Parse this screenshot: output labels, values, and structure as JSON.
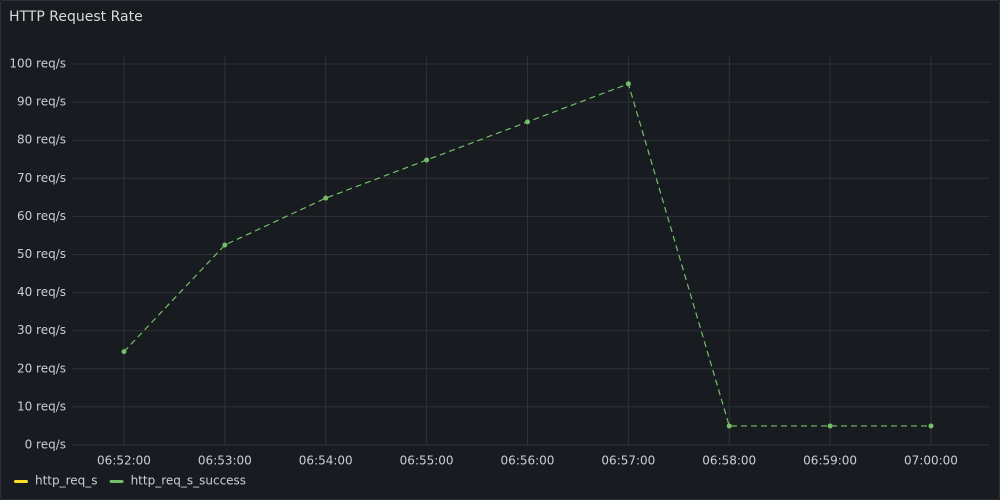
{
  "panel": {
    "title": "HTTP Request Rate"
  },
  "chart_data": {
    "type": "line",
    "categories": [
      "06:52:00",
      "06:53:00",
      "06:54:00",
      "06:55:00",
      "06:56:00",
      "06:57:00",
      "06:58:00",
      "06:59:00",
      "07:00:00"
    ],
    "series": [
      {
        "name": "http_req_s",
        "color": "#fade2a",
        "values": [
          null,
          null,
          null,
          null,
          null,
          null,
          null,
          null,
          null
        ]
      },
      {
        "name": "http_req_s_success",
        "color": "#73bf69",
        "values": [
          24.5,
          52.5,
          64.8,
          74.8,
          84.8,
          94.8,
          5,
          5,
          5
        ]
      }
    ],
    "ylim": [
      0,
      100
    ],
    "yticks": [
      {
        "value": 0,
        "label": "0 req/s"
      },
      {
        "value": 10,
        "label": "10 req/s"
      },
      {
        "value": 20,
        "label": "20 req/s"
      },
      {
        "value": 30,
        "label": "30 req/s"
      },
      {
        "value": 40,
        "label": "40 req/s"
      },
      {
        "value": 50,
        "label": "50 req/s"
      },
      {
        "value": 60,
        "label": "60 req/s"
      },
      {
        "value": 70,
        "label": "70 req/s"
      },
      {
        "value": 80,
        "label": "80 req/s"
      },
      {
        "value": 90,
        "label": "90 req/s"
      },
      {
        "value": 100,
        "label": "100 req/s"
      }
    ],
    "grid": true,
    "legend": "bottom-left"
  }
}
